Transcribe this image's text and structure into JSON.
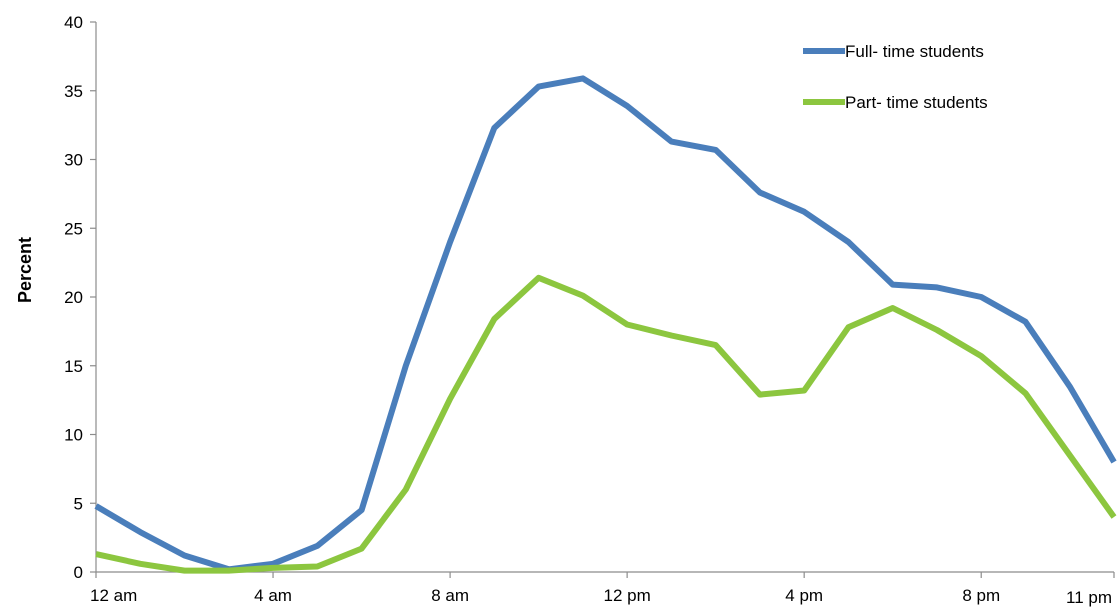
{
  "chart_data": {
    "type": "line",
    "title": "",
    "xlabel": "",
    "ylabel": "Percent",
    "ylim": [
      0,
      40
    ],
    "yticks": [
      0,
      5,
      10,
      15,
      20,
      25,
      30,
      35,
      40
    ],
    "x_hours": [
      0,
      1,
      2,
      3,
      4,
      5,
      6,
      7,
      8,
      9,
      10,
      11,
      12,
      13,
      14,
      15,
      16,
      17,
      18,
      19,
      20,
      21,
      22,
      23
    ],
    "xtick_labels": [
      {
        "hour": 0,
        "label": "12 am"
      },
      {
        "hour": 4,
        "label": "4 am"
      },
      {
        "hour": 8,
        "label": "8 am"
      },
      {
        "hour": 12,
        "label": "12 pm"
      },
      {
        "hour": 16,
        "label": "4 pm"
      },
      {
        "hour": 20,
        "label": "8 pm"
      },
      {
        "hour": 23,
        "label": "11 pm"
      }
    ],
    "grid": false,
    "legend_position": "top-right",
    "series": [
      {
        "name": "Full- time students",
        "color": "#4a7ebb",
        "values": [
          4.8,
          2.9,
          1.2,
          0.2,
          0.6,
          1.9,
          4.5,
          15.0,
          24.0,
          32.3,
          35.3,
          35.9,
          33.9,
          31.3,
          30.7,
          27.6,
          26.2,
          24.0,
          20.9,
          20.7,
          20.0,
          18.2,
          13.5,
          8.0
        ]
      },
      {
        "name": "Part- time students",
        "color": "#8cc63f",
        "values": [
          1.3,
          0.6,
          0.1,
          0.1,
          0.3,
          0.4,
          1.7,
          6.0,
          12.6,
          18.4,
          21.4,
          20.1,
          18.0,
          17.2,
          16.5,
          12.9,
          13.2,
          17.8,
          19.2,
          17.6,
          15.7,
          13.0,
          8.5,
          4.0
        ]
      }
    ]
  }
}
